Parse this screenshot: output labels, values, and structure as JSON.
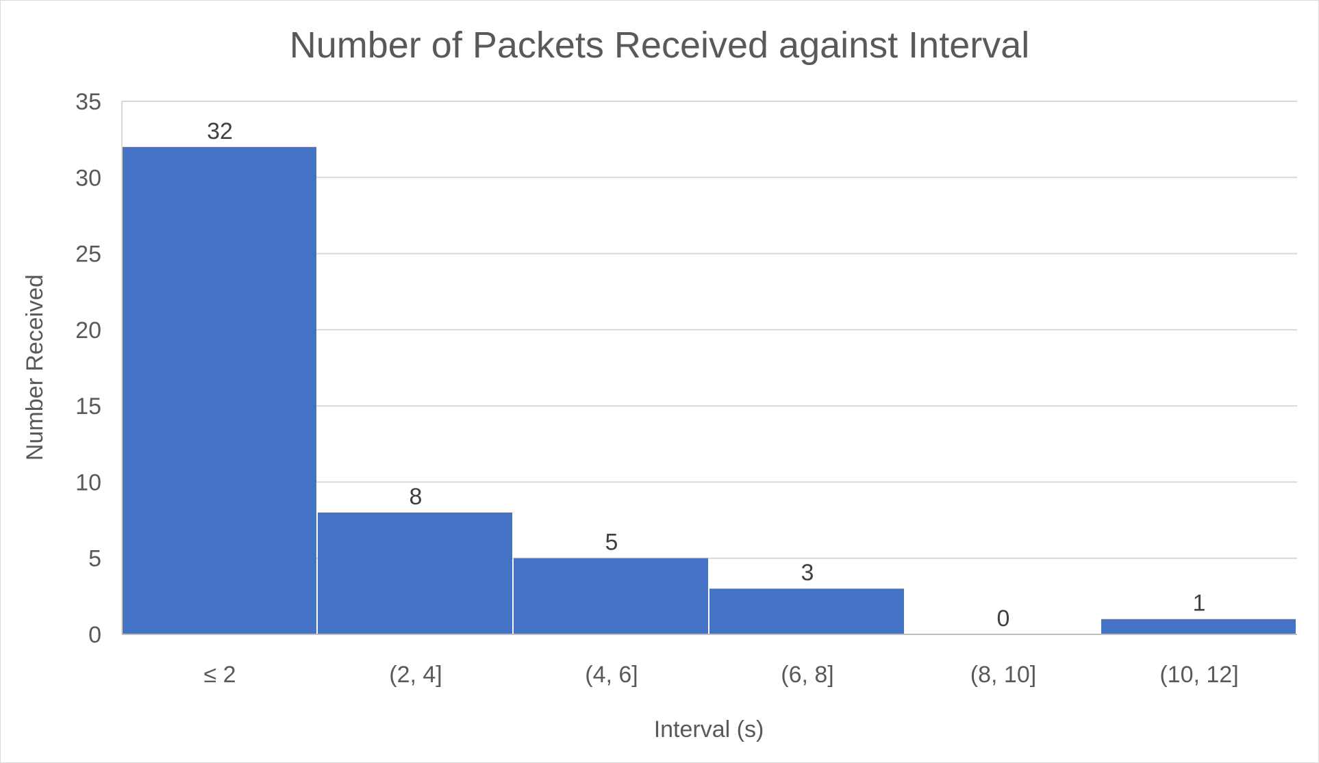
{
  "chart_data": {
    "type": "bar",
    "title": "Number of Packets Received against Interval",
    "xlabel": "Interval (s)",
    "ylabel": "Number Received",
    "categories": [
      "≤ 2",
      "(2, 4]",
      "(4, 6]",
      "(6, 8]",
      "(8, 10]",
      "(10, 12]"
    ],
    "values": [
      32,
      8,
      5,
      3,
      0,
      1
    ],
    "ylim": [
      0,
      35
    ],
    "yticks": [
      0,
      5,
      10,
      15,
      20,
      25,
      30,
      35
    ],
    "grid": true,
    "legend": "none",
    "data_labels": true,
    "colors": {
      "bar": "#4472C4",
      "grid": "#d9d9d9",
      "text": "#595959",
      "frame": "#d9d9d9"
    }
  }
}
